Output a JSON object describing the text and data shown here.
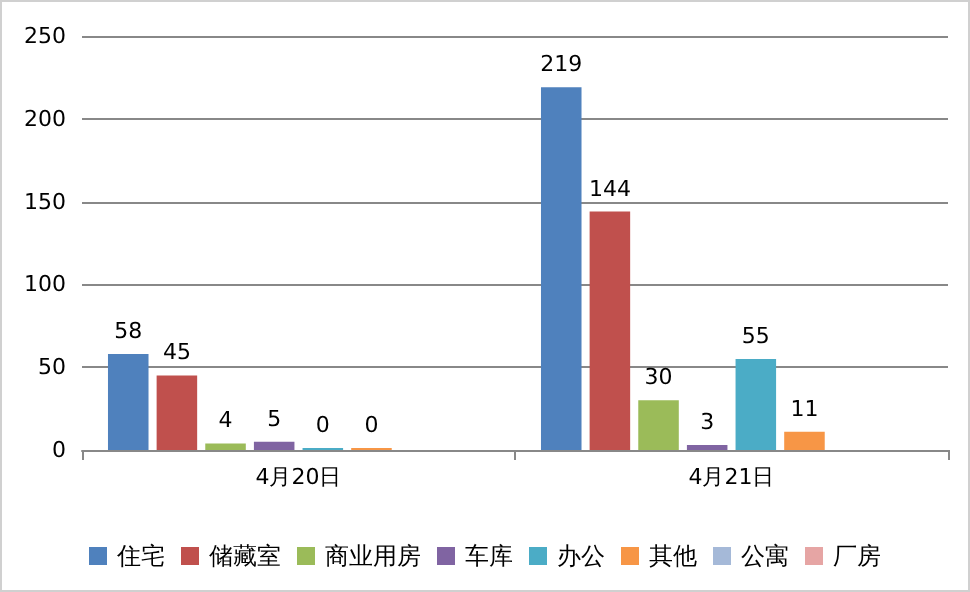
{
  "chart_data": {
    "type": "bar",
    "categories": [
      "4月20日",
      "4月21日"
    ],
    "series": [
      {
        "name": "住宅",
        "color": "#4f81bd",
        "values": [
          58,
          219
        ]
      },
      {
        "name": "储藏室",
        "color": "#c0504d",
        "values": [
          45,
          144
        ]
      },
      {
        "name": "商业用房",
        "color": "#9bbb59",
        "values": [
          4,
          30
        ]
      },
      {
        "name": "车库",
        "color": "#8064a2",
        "values": [
          5,
          3
        ]
      },
      {
        "name": "办公",
        "color": "#4bacc6",
        "values": [
          0,
          55
        ]
      },
      {
        "name": "其他",
        "color": "#f79646",
        "values": [
          0,
          11
        ]
      },
      {
        "name": "公寓",
        "color": "#a5b9d8",
        "values": [
          null,
          null
        ]
      },
      {
        "name": "厂房",
        "color": "#e6a5a4",
        "values": [
          null,
          null
        ]
      }
    ],
    "ylim": [
      0,
      250
    ],
    "yticks": [
      0,
      50,
      100,
      150,
      200,
      250
    ],
    "grid": "y",
    "legend": "bottom",
    "data_labels": true
  }
}
